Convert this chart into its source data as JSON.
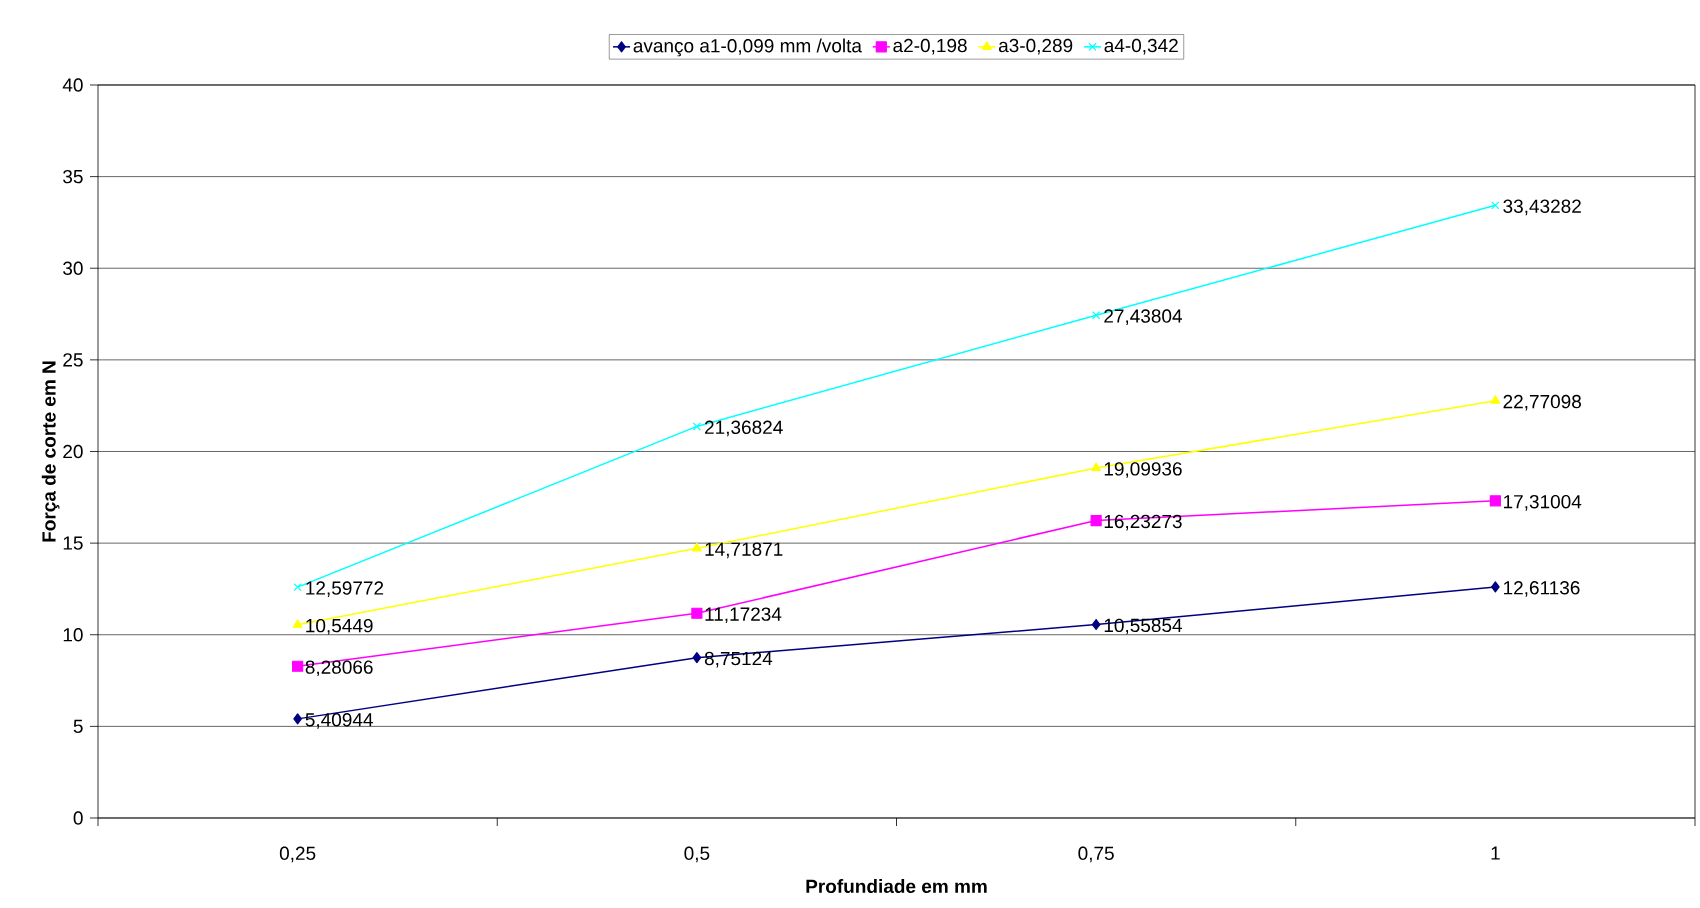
{
  "chart_data": {
    "type": "line",
    "xlabel": "Profundiade em mm",
    "ylabel": "Força de corte em N",
    "categories": [
      "0,25",
      "0,5",
      "0,75",
      "1"
    ],
    "ylim": [
      0,
      40
    ],
    "yticks": [
      0,
      5,
      10,
      15,
      20,
      25,
      30,
      35,
      40
    ],
    "grid": "y",
    "legend": "top",
    "series": [
      {
        "name": "avanço a1-0,099 mm /volta",
        "color": "#000080",
        "marker": "diamond",
        "values": [
          5.40944,
          8.75124,
          10.55854,
          12.61136
        ],
        "value_labels": [
          "5,40944",
          "8,75124",
          "10,55854",
          "12,61136"
        ]
      },
      {
        "name": "a2-0,198",
        "color": "#ff00ff",
        "marker": "square",
        "values": [
          8.28066,
          11.17234,
          16.23273,
          17.31004
        ],
        "value_labels": [
          "8,28066",
          "11,17234",
          "16,23273",
          "17,31004"
        ]
      },
      {
        "name": "a3-0,289",
        "color": "#ffff00",
        "marker": "triangle",
        "values": [
          10.5449,
          14.71871,
          19.09936,
          22.77098
        ],
        "value_labels": [
          "10,5449",
          "14,71871",
          "19,09936",
          "22,77098"
        ]
      },
      {
        "name": "a4-0,342",
        "color": "#00ffff",
        "marker": "cross",
        "values": [
          12.59772,
          21.36824,
          27.43804,
          33.43282
        ],
        "value_labels": [
          "12,59772",
          "21,36824",
          "27,43804",
          "33,43282"
        ]
      }
    ]
  }
}
